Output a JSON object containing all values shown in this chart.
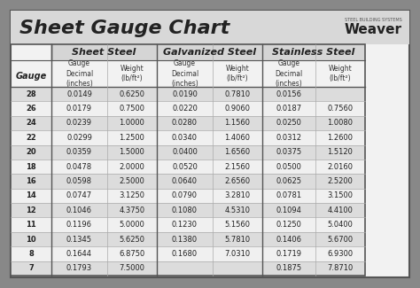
{
  "title": "Sheet Gauge Chart",
  "background_outer": "#888888",
  "background_inner": "#f0f0f0",
  "header_bg": "#d0d0d0",
  "row_bg_alt": "#e8e8e8",
  "row_bg_normal": "#f5f5f5",
  "border_color": "#555555",
  "gauges": [
    28,
    26,
    24,
    22,
    20,
    18,
    16,
    14,
    12,
    11,
    10,
    8,
    7
  ],
  "sheet_steel": {
    "decimal": [
      "0.0149",
      "0.0179",
      "0.0239",
      "0.0299",
      "0.0359",
      "0.0478",
      "0.0598",
      "0.0747",
      "0.1046",
      "0.1196",
      "0.1345",
      "0.1644",
      "0.1793"
    ],
    "weight": [
      "0.6250",
      "0.7500",
      "1.0000",
      "1.2500",
      "1.5000",
      "2.0000",
      "2.5000",
      "3.1250",
      "4.3750",
      "5.0000",
      "5.6250",
      "6.8750",
      "7.5000"
    ]
  },
  "galvanized_steel": {
    "decimal": [
      "0.0190",
      "0.0220",
      "0.0280",
      "0.0340",
      "0.0400",
      "0.0520",
      "0.0640",
      "0.0790",
      "0.1080",
      "0.1230",
      "0.1380",
      "0.1680",
      ""
    ],
    "weight": [
      "0.7810",
      "0.9060",
      "1.1560",
      "1.4060",
      "1.6560",
      "2.1560",
      "2.6560",
      "3.2810",
      "4.5310",
      "5.1560",
      "5.7810",
      "7.0310",
      ""
    ]
  },
  "stainless_steel": {
    "decimal": [
      "0.0156",
      "0.0187",
      "0.0250",
      "0.0312",
      "0.0375",
      "0.0500",
      "0.0625",
      "0.0781",
      "0.1094",
      "0.1250",
      "0.1406",
      "0.1719",
      "0.1875"
    ],
    "weight": [
      "",
      "0.7560",
      "1.0080",
      "1.2600",
      "1.5120",
      "2.0160",
      "2.5200",
      "3.1500",
      "4.4100",
      "5.0400",
      "5.6700",
      "6.9300",
      "7.8710"
    ]
  }
}
